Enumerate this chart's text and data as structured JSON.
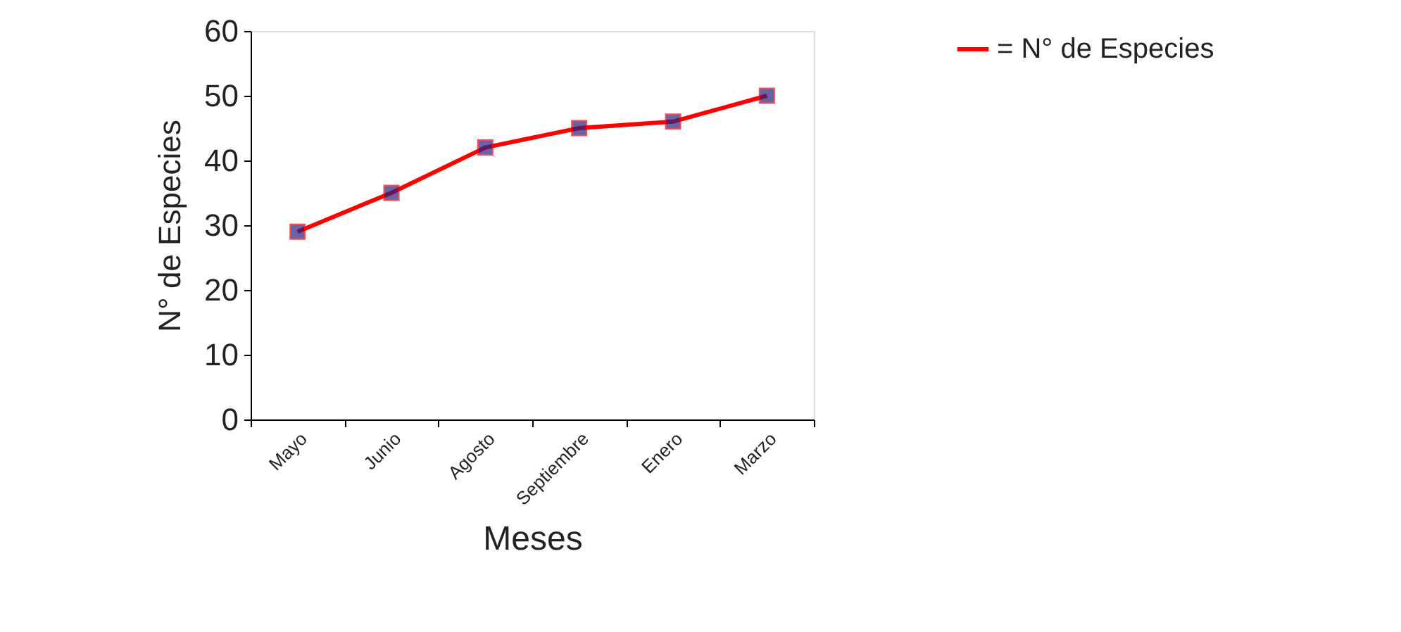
{
  "chart_data": {
    "type": "line",
    "xlabel": "Meses",
    "ylabel": "N° de Especies",
    "categories": [
      "Mayo",
      "Junio",
      "Agosto",
      "Septiembre",
      "Enero",
      "Marzo"
    ],
    "series": [
      {
        "name": "= N° de Especies",
        "color": "#ff0000",
        "values": [
          29,
          35,
          42,
          45,
          46,
          50
        ]
      }
    ],
    "ylim": [
      0,
      60
    ],
    "yticks": [
      0,
      10,
      20,
      30,
      40,
      50,
      60
    ],
    "marker": "square",
    "line_style": "solid",
    "grid": false,
    "legend": "top right"
  }
}
